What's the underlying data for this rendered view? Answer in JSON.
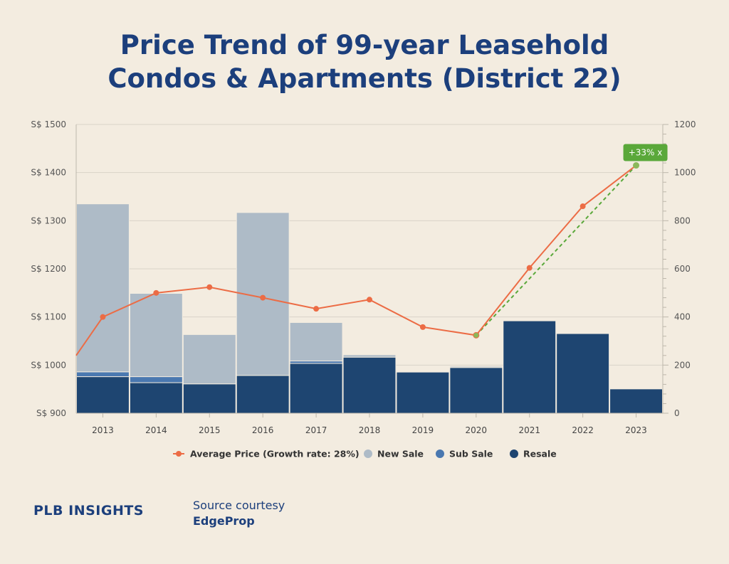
{
  "title": {
    "line1": "Price Trend of 99-year Leasehold",
    "line2": "Condos & Apartments (District 22)"
  },
  "branding": {
    "logo_text": "PLB INSIGHTS"
  },
  "source": {
    "line1": "Source courtesy",
    "line2": "EdgeProp"
  },
  "colors": {
    "new_sale": "#aebbc7",
    "sub_sale": "#4a78b0",
    "resale": "#1e4571",
    "price_line": "#ec6c45",
    "trend_line": "#5aa83a",
    "badge": "#5aa83a",
    "title": "#1c3f7c"
  },
  "chart_data": {
    "type": "bar+line",
    "categories": [
      "2013",
      "2014",
      "2015",
      "2016",
      "2017",
      "2018",
      "2019",
      "2020",
      "2021",
      "2022",
      "2023"
    ],
    "left_axis": {
      "ticks": [
        900,
        1000,
        1100,
        1200,
        1300,
        1400,
        1500
      ],
      "tick_labels": [
        "S$ 900",
        "S$ 1000",
        "S$ 1100",
        "S$ 1200",
        "S$ 1300",
        "S$ 1400",
        "S$ 1500"
      ],
      "range": [
        900,
        1500
      ]
    },
    "right_axis": {
      "ticks": [
        0,
        200,
        400,
        600,
        800,
        1000,
        1200
      ],
      "tick_labels": [
        "0",
        "200",
        "400",
        "600",
        "800",
        "1000",
        "1200"
      ],
      "range": [
        0,
        1200
      ]
    },
    "stacked_bars": [
      {
        "name": "Resale",
        "axis": "right",
        "values": [
          152,
          127,
          122,
          157,
          207,
          233,
          171,
          190,
          384,
          331,
          101
        ]
      },
      {
        "name": "Sub Sale",
        "axis": "right",
        "values": [
          20,
          25,
          0,
          0,
          10,
          0,
          0,
          0,
          0,
          0,
          0
        ]
      },
      {
        "name": "New Sale",
        "axis": "right",
        "values": [
          698,
          346,
          205,
          677,
          160,
          10,
          0,
          5,
          0,
          0,
          0
        ]
      }
    ],
    "line": {
      "name": "Average Price (Growth rate: 28%)",
      "axis": "left",
      "start_value": 1020,
      "values": [
        1100,
        1150,
        1162,
        1140,
        1117,
        1136,
        1079,
        1062,
        1202,
        1330,
        1415
      ]
    },
    "trend": {
      "from_category": "2020",
      "to_category": "2023",
      "from_value": 1062,
      "to_value": 1415,
      "label": "+33% x"
    },
    "legend": {
      "placement": "bottom-center",
      "items": [
        "Average Price (Growth rate: 28%)",
        "New Sale",
        "Sub Sale",
        "Resale"
      ]
    },
    "grid": true
  }
}
